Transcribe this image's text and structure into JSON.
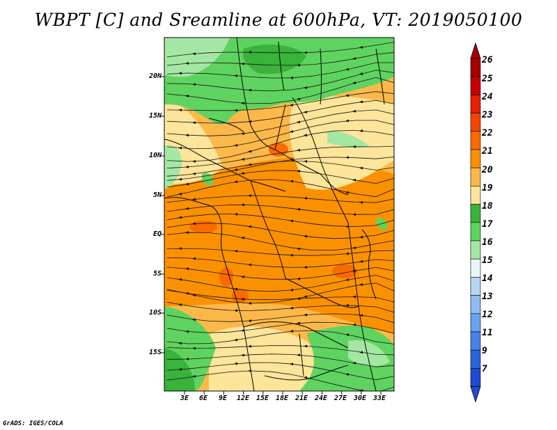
{
  "title": "WBPT [C] and Sreamline at 600hPa, VT: 2019050100",
  "credit": "GrADS: IGES/COLA",
  "map": {
    "lat_labels": [
      "20N",
      "15N",
      "10N",
      "5N",
      "EQ",
      "5S",
      "10S",
      "15S"
    ],
    "lon_labels": [
      "3E",
      "6E",
      "9E",
      "12E",
      "15E",
      "18E",
      "21E",
      "24E",
      "27E",
      "30E",
      "33E"
    ]
  },
  "colorbar": {
    "labels": [
      "26",
      "25",
      "24",
      "23",
      "22",
      "21",
      "20",
      "19",
      "18",
      "17",
      "16",
      "15",
      "14",
      "13",
      "12",
      "11",
      "9",
      "7"
    ],
    "colors": [
      "#a50000",
      "#c80000",
      "#e62000",
      "#f44400",
      "#f96a00",
      "#fb9100",
      "#fdb84a",
      "#fde59a",
      "#39b339",
      "#5fd35f",
      "#a3e7a3",
      "#e8f8f8",
      "#b4d6f0",
      "#8ebcef",
      "#6aa2ec",
      "#4682e6",
      "#2a64dc",
      "#1e4bd2"
    ]
  }
}
